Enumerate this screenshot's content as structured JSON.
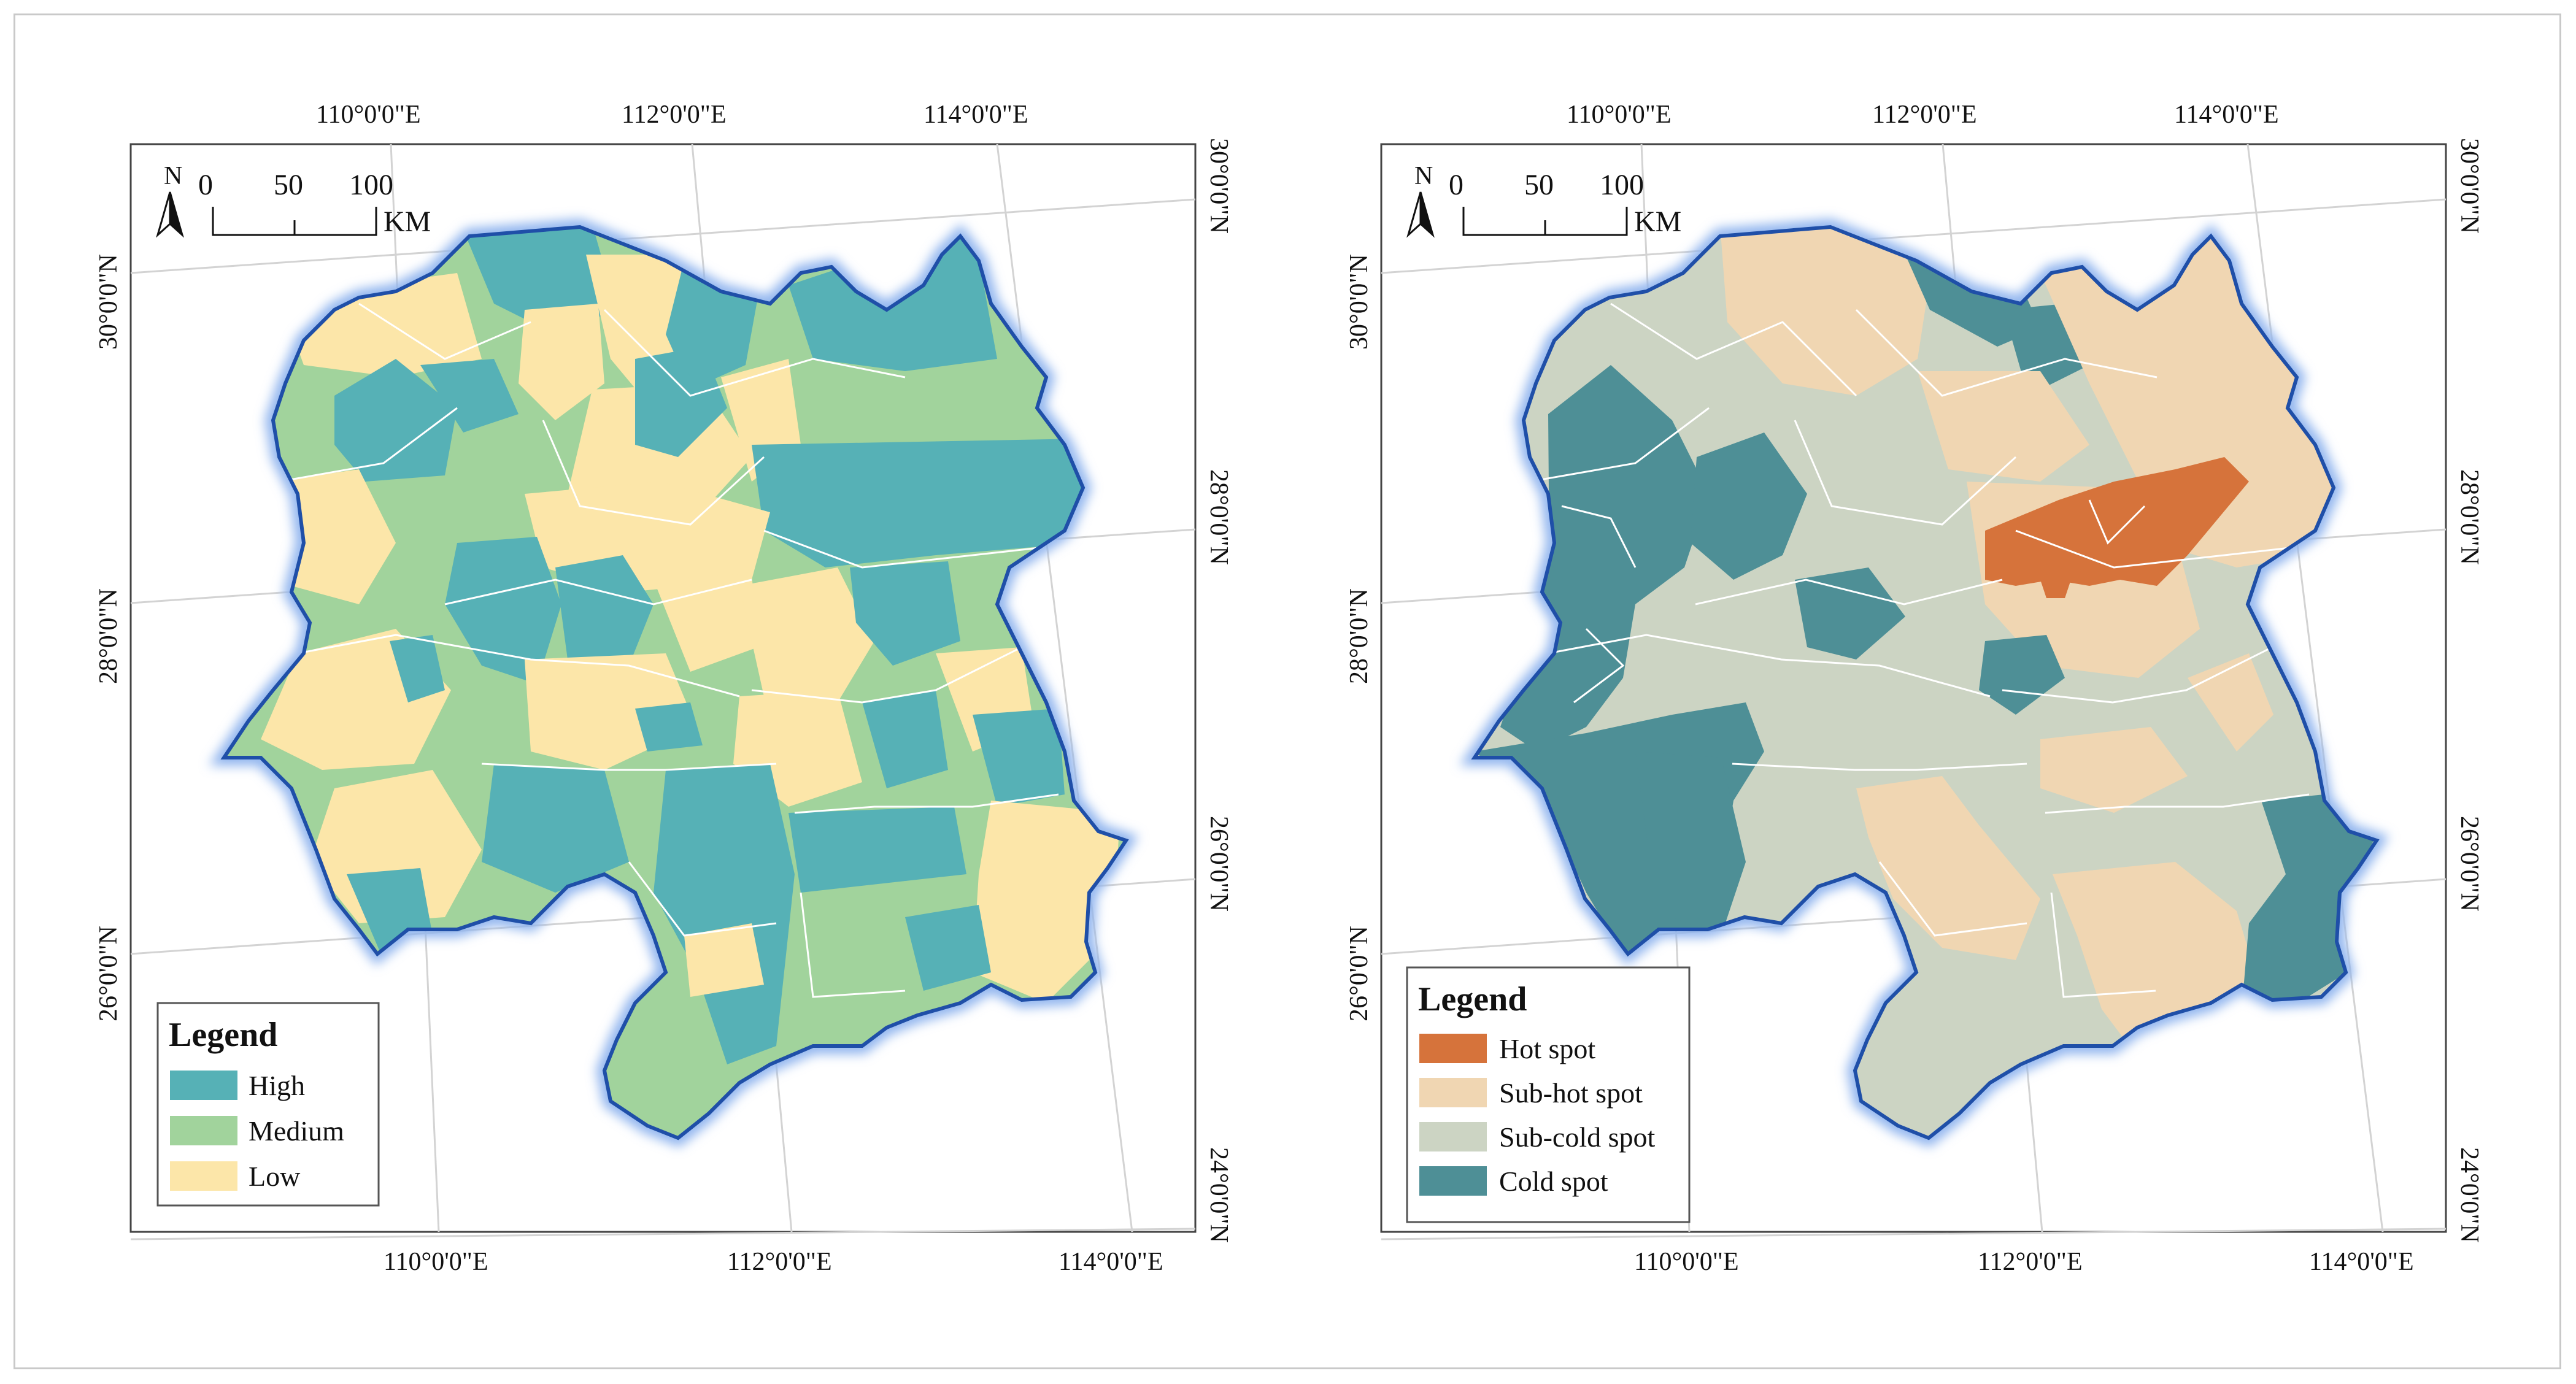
{
  "colors": {
    "high": "#56b1b6",
    "medium": "#a1d39c",
    "low": "#fce6a9",
    "hot_spot": "#d6733b",
    "sub_hot_spot": "#f0d6b2",
    "sub_cold_spot": "#ccd4c3",
    "cold_spot": "#4e8f96",
    "boundary": "#1f4fa8",
    "graticule": "#d3d3d3"
  },
  "left_map": {
    "top_ticks": [
      "110°0'0\"E",
      "112°0'0\"E",
      "114°0'0\"E"
    ],
    "bottom_ticks": [
      "110°0'0\"E",
      "112°0'0\"E",
      "114°0'0\"E"
    ],
    "left_ticks": [
      "30°0'0\"N",
      "28°0'0\"N",
      "26°0'0\"N"
    ],
    "right_ticks": [
      "30°0'0\"N",
      "28°0'0\"N",
      "26°0'0\"N",
      "24°0'0\"N"
    ],
    "north_label": "N",
    "scale_labels": [
      "0",
      "50",
      "100"
    ],
    "scale_unit": "KM",
    "legend": {
      "title": "Legend",
      "items": [
        {
          "label": "High",
          "icon": "high-swatch"
        },
        {
          "label": "Medium",
          "icon": "medium-swatch"
        },
        {
          "label": "Low",
          "icon": "low-swatch"
        }
      ]
    }
  },
  "right_map": {
    "top_ticks": [
      "110°0'0\"E",
      "112°0'0\"E",
      "114°0'0\"E"
    ],
    "bottom_ticks": [
      "110°0'0\"E",
      "112°0'0\"E",
      "114°0'0\"E"
    ],
    "left_ticks": [
      "30°0'0\"N",
      "28°0'0\"N",
      "26°0'0\"N"
    ],
    "right_ticks": [
      "30°0'0\"N",
      "28°0'0\"N",
      "26°0'0\"N",
      "24°0'0\"N"
    ],
    "north_label": "N",
    "scale_labels": [
      "0",
      "50",
      "100"
    ],
    "scale_unit": "KM",
    "legend": {
      "title": "Legend",
      "items": [
        {
          "label": "Hot spot",
          "icon": "hot-spot-swatch"
        },
        {
          "label": "Sub-hot spot",
          "icon": "sub-hot-spot-swatch"
        },
        {
          "label": "Sub-cold spot",
          "icon": "sub-cold-spot-swatch"
        },
        {
          "label": "Cold spot",
          "icon": "cold-spot-swatch"
        }
      ]
    }
  }
}
